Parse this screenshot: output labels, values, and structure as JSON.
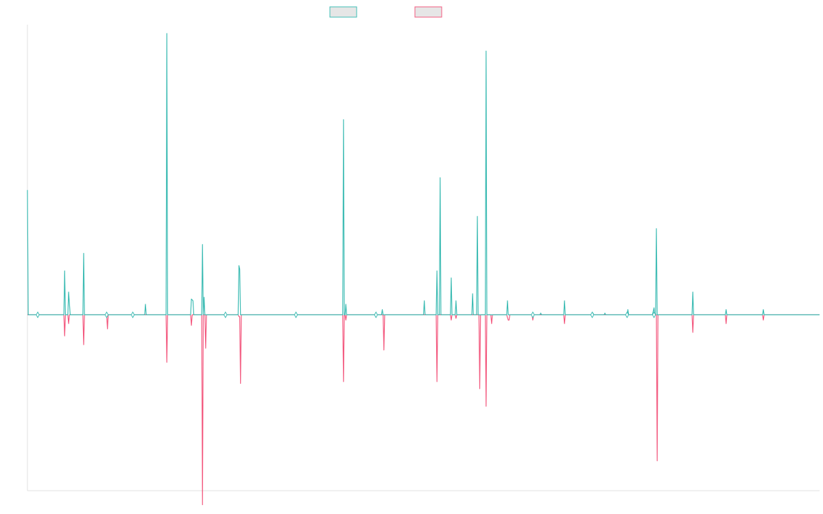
{
  "chart_data": {
    "type": "line",
    "title": "",
    "xlabel": "",
    "ylabel": "",
    "grid": false,
    "legend_position": "top-center",
    "ylim": [
      -1.0,
      1.65
    ],
    "xlim": [
      0,
      1000
    ],
    "series": [
      {
        "color": "#3ebcb4",
        "fill": "#e6e6e6",
        "values": [
          [
            0,
            0.71
          ],
          [
            1,
            0
          ],
          [
            13,
            0
          ],
          [
            15,
            0
          ],
          [
            46,
            0
          ],
          [
            47,
            0.25
          ],
          [
            48,
            0
          ],
          [
            51,
            0
          ],
          [
            52,
            0.13
          ],
          [
            54,
            0
          ],
          [
            70,
            0
          ],
          [
            71,
            0.35
          ],
          [
            72,
            0
          ],
          [
            100,
            0
          ],
          [
            102,
            0
          ],
          [
            133,
            0
          ],
          [
            135,
            0
          ],
          [
            148,
            0
          ],
          [
            149,
            0.06
          ],
          [
            150,
            0
          ],
          [
            175,
            0
          ],
          [
            176,
            1.6
          ],
          [
            177,
            0
          ],
          [
            206,
            0
          ],
          [
            207,
            0.09
          ],
          [
            209,
            0.08
          ],
          [
            210,
            0
          ],
          [
            220,
            0
          ],
          [
            221,
            0.4
          ],
          [
            222,
            0
          ],
          [
            223,
            0.1
          ],
          [
            224,
            0
          ],
          [
            250,
            0
          ],
          [
            251,
            0
          ],
          [
            266,
            0
          ],
          [
            267,
            0.28
          ],
          [
            268,
            0.26
          ],
          [
            269,
            0
          ],
          [
            339,
            0
          ],
          [
            341,
            0
          ],
          [
            398,
            0
          ],
          [
            399,
            1.11
          ],
          [
            400,
            0
          ],
          [
            401,
            0
          ],
          [
            402,
            0.06
          ],
          [
            403,
            0
          ],
          [
            440,
            0
          ],
          [
            442,
            0
          ],
          [
            447,
            0
          ],
          [
            448,
            0.03
          ],
          [
            449,
            0
          ],
          [
            500,
            0
          ],
          [
            501,
            0.08
          ],
          [
            502,
            0
          ],
          [
            516,
            0
          ],
          [
            517,
            0.25
          ],
          [
            518,
            0
          ],
          [
            520,
            0
          ],
          [
            521,
            0.78
          ],
          [
            522,
            0
          ],
          [
            534,
            0
          ],
          [
            535,
            0.21
          ],
          [
            536,
            0
          ],
          [
            540,
            0
          ],
          [
            541,
            0.08
          ],
          [
            542,
            0
          ],
          [
            561,
            0
          ],
          [
            562,
            0.12
          ],
          [
            563,
            0
          ],
          [
            567,
            0
          ],
          [
            568,
            0.56
          ],
          [
            569,
            0
          ],
          [
            575,
            0
          ],
          [
            576,
            0
          ],
          [
            578,
            0
          ],
          [
            579,
            1.5
          ],
          [
            580,
            0
          ],
          [
            605,
            0
          ],
          [
            606,
            0.08
          ],
          [
            607,
            0
          ],
          [
            609,
            0
          ],
          [
            637,
            0
          ],
          [
            638,
            0
          ],
          [
            647,
            0
          ],
          [
            648,
            0.01
          ],
          [
            649,
            0
          ],
          [
            677,
            0
          ],
          [
            678,
            0.08
          ],
          [
            679,
            0
          ],
          [
            713,
            0
          ],
          [
            714,
            0.01
          ],
          [
            715,
            0
          ],
          [
            728,
            0
          ],
          [
            729,
            0.01
          ],
          [
            730,
            0
          ],
          [
            757,
            0
          ],
          [
            758,
            0.03
          ],
          [
            759,
            0
          ],
          [
            789,
            0
          ],
          [
            791,
            0.04
          ],
          [
            792,
            0
          ],
          [
            793,
            0
          ],
          [
            794,
            0.49
          ],
          [
            795,
            0
          ],
          [
            839,
            0
          ],
          [
            840,
            0.13
          ],
          [
            841,
            0
          ],
          [
            881,
            0
          ],
          [
            882,
            0.03
          ],
          [
            883,
            0
          ],
          [
            928,
            0
          ],
          [
            929,
            0.03
          ],
          [
            930,
            0
          ],
          [
            1000,
            0
          ]
        ]
      },
      {
        "color": "#f3587e",
        "fill": "#e6e6e6",
        "values": [
          [
            0,
            0
          ],
          [
            46,
            0
          ],
          [
            47,
            -0.12
          ],
          [
            48,
            0
          ],
          [
            51,
            0
          ],
          [
            52,
            -0.05
          ],
          [
            53,
            0
          ],
          [
            70,
            0
          ],
          [
            71,
            -0.17
          ],
          [
            72,
            0
          ],
          [
            100,
            0
          ],
          [
            101,
            -0.08
          ],
          [
            102,
            0
          ],
          [
            175,
            0
          ],
          [
            176,
            -0.27
          ],
          [
            177,
            0
          ],
          [
            206,
            0
          ],
          [
            207,
            -0.06
          ],
          [
            208,
            0
          ],
          [
            220,
            0
          ],
          [
            221,
            -1.08
          ],
          [
            222,
            0
          ],
          [
            224,
            0
          ],
          [
            225,
            -0.19
          ],
          [
            226,
            0
          ],
          [
            266,
            0
          ],
          [
            267,
            -0.01
          ],
          [
            268,
            -0.01
          ],
          [
            269,
            -0.39
          ],
          [
            270,
            0
          ],
          [
            398,
            0
          ],
          [
            399,
            -0.38
          ],
          [
            400,
            0
          ],
          [
            401,
            0
          ],
          [
            402,
            -0.03
          ],
          [
            403,
            0
          ],
          [
            449,
            0
          ],
          [
            450,
            -0.2
          ],
          [
            451,
            0
          ],
          [
            516,
            0
          ],
          [
            517,
            -0.38
          ],
          [
            518,
            0
          ],
          [
            534,
            0
          ],
          [
            535,
            -0.03
          ],
          [
            536,
            0
          ],
          [
            540,
            0
          ],
          [
            541,
            -0.02
          ],
          [
            542,
            0
          ],
          [
            570,
            0
          ],
          [
            571,
            -0.42
          ],
          [
            572,
            0
          ],
          [
            578,
            0
          ],
          [
            579,
            -0.52
          ],
          [
            580,
            0
          ],
          [
            585,
            0
          ],
          [
            586,
            -0.05
          ],
          [
            587,
            0
          ],
          [
            605,
            0
          ],
          [
            607,
            -0.03
          ],
          [
            608,
            -0.03
          ],
          [
            609,
            0
          ],
          [
            637,
            0
          ],
          [
            638,
            -0.03
          ],
          [
            639,
            0
          ],
          [
            677,
            0
          ],
          [
            678,
            -0.05
          ],
          [
            679,
            0
          ],
          [
            794,
            0
          ],
          [
            795,
            -0.83
          ],
          [
            796,
            0
          ],
          [
            839,
            0
          ],
          [
            840,
            -0.1
          ],
          [
            841,
            0
          ],
          [
            881,
            0
          ],
          [
            882,
            -0.05
          ],
          [
            883,
            0
          ],
          [
            928,
            0
          ],
          [
            929,
            -0.03
          ],
          [
            930,
            0
          ],
          [
            1000,
            0
          ]
        ]
      }
    ],
    "markers": [
      13,
      100,
      133,
      250,
      339,
      440,
      638,
      713,
      757,
      791
    ]
  }
}
